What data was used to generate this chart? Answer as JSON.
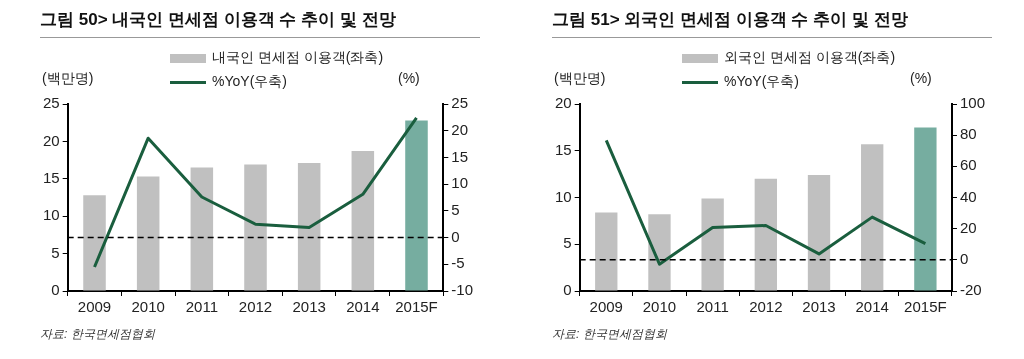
{
  "chart_data": [
    {
      "type": "bar",
      "title": "그림 50> 내국인 면세점 이용객 수 추이 및 전망",
      "ylabel": "(백만명)",
      "y2label": "(%)",
      "categories": [
        "2009",
        "2010",
        "2011",
        "2012",
        "2013",
        "2014",
        "2015F"
      ],
      "series": [
        {
          "name": "내국인 면세점 이용객(좌축)",
          "color": "#c0c0c0",
          "colors": [
            "#c0c0c0",
            "#c0c0c0",
            "#c0c0c0",
            "#c0c0c0",
            "#c0c0c0",
            "#c0c0c0",
            "#76ada0"
          ],
          "values": [
            12.8,
            15.3,
            16.5,
            16.9,
            17.1,
            18.7,
            22.8
          ]
        },
        {
          "name": "%YoY(우축)",
          "type": "line",
          "axis": "y2",
          "color": "#1a5e3e",
          "values": [
            -5.5,
            18.6,
            7.6,
            2.5,
            1.9,
            8.1,
            22.4
          ]
        }
      ],
      "ylim": [
        0,
        25
      ],
      "yticks": [
        0,
        5,
        10,
        15,
        20,
        25
      ],
      "y2lim": [
        -10,
        25
      ],
      "y2ticks": [
        -10,
        -5,
        0,
        5,
        10,
        15,
        20,
        25
      ],
      "ref_lines": [
        {
          "axis": "y2",
          "value": 0,
          "color": "#000000",
          "line_style": "dashed"
        }
      ],
      "grid": false,
      "legend": "top",
      "marker": "none",
      "annotations": [
        "자료: 한국면세점협회"
      ]
    },
    {
      "type": "bar",
      "title": "그림 51> 외국인 면세점 이용객 수 추이 및 전망",
      "ylabel": "(백만명)",
      "y2label": "(%)",
      "categories": [
        "2009",
        "2010",
        "2011",
        "2012",
        "2013",
        "2014",
        "2015F"
      ],
      "series": [
        {
          "name": "외국인 면세점 이용객(좌축)",
          "color": "#c0c0c0",
          "colors": [
            "#c0c0c0",
            "#c0c0c0",
            "#c0c0c0",
            "#c0c0c0",
            "#c0c0c0",
            "#c0c0c0",
            "#76ada0"
          ],
          "values": [
            8.4,
            8.2,
            9.9,
            12.0,
            12.4,
            15.7,
            17.5
          ]
        },
        {
          "name": "%YoY(우축)",
          "type": "line",
          "axis": "y2",
          "color": "#1a5e3e",
          "values": [
            76.6,
            -2.8,
            20.8,
            22,
            3.8,
            27.4,
            10.4
          ]
        }
      ],
      "ylim": [
        0,
        20
      ],
      "yticks": [
        0,
        5,
        10,
        15,
        20
      ],
      "y2lim": [
        -20,
        100
      ],
      "y2ticks": [
        -20,
        0,
        20,
        40,
        60,
        80,
        100
      ],
      "ref_lines": [
        {
          "axis": "y2",
          "value": 0,
          "color": "#000000",
          "line_style": "dashed"
        }
      ],
      "grid": false,
      "legend": "top",
      "marker": "none",
      "annotations": [
        "자료: 한국면세점협회"
      ]
    }
  ]
}
